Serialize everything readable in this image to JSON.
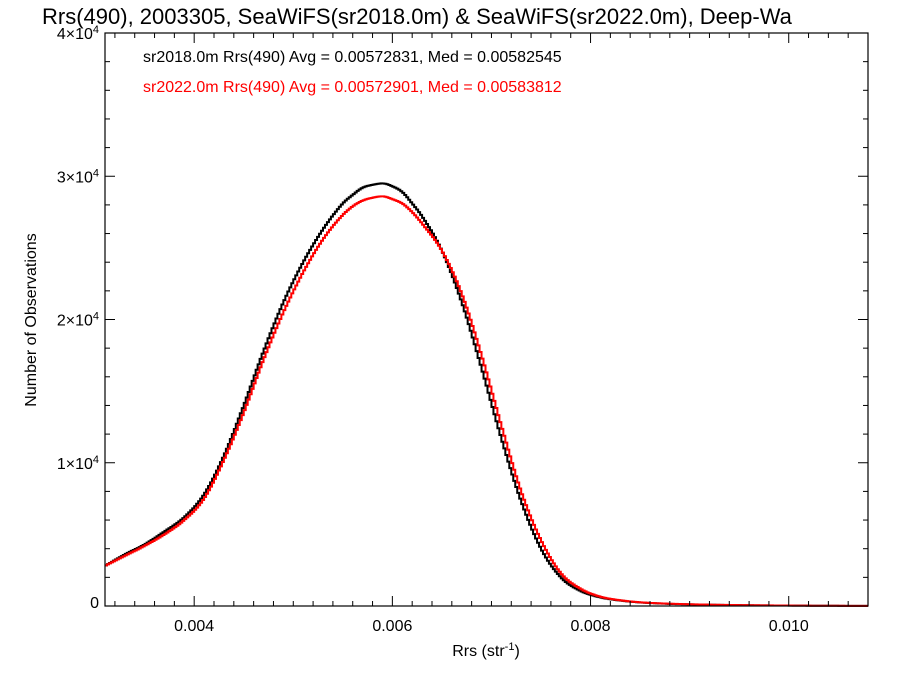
{
  "chart_data": {
    "type": "line",
    "step": true,
    "title": "Rrs(490), 2003305, SeaWiFS(sr2018.0m) & SeaWiFS(sr2022.0m), Deep-Wa",
    "xlabel": "Rrs (str",
    "xlabel_sup": "-1",
    "xlabel_suffix": ")",
    "ylabel": "Number of Observations",
    "xlim": [
      0.0031,
      0.0108
    ],
    "ylim": [
      0,
      40000
    ],
    "x_ticks": [
      {
        "value": 0.004,
        "label": "0.004"
      },
      {
        "value": 0.006,
        "label": "0.006"
      },
      {
        "value": 0.008,
        "label": "0.008"
      },
      {
        "value": 0.01,
        "label": "0.010"
      }
    ],
    "y_ticks": [
      {
        "value": 0,
        "label": "0",
        "sup": ""
      },
      {
        "value": 10000,
        "label": "1×10",
        "sup": "4"
      },
      {
        "value": 20000,
        "label": "2×10",
        "sup": "4"
      },
      {
        "value": 30000,
        "label": "3×10",
        "sup": "4"
      },
      {
        "value": 40000,
        "label": "4×10",
        "sup": "4"
      }
    ],
    "annotations": [
      {
        "text": "sr2018.0m Rrs(490) Avg = 0.00572831, Med = 0.00582545",
        "color": "#000000"
      },
      {
        "text": "sr2022.0m Rrs(490) Avg = 0.00572901, Med = 0.00583812",
        "color": "#ff0000"
      }
    ],
    "grid": false,
    "series": [
      {
        "color": "#000000",
        "x": [
          0.0031,
          0.0033,
          0.0035,
          0.0037,
          0.0039,
          0.0041,
          0.0043,
          0.0045,
          0.0047,
          0.0049,
          0.0051,
          0.0053,
          0.0055,
          0.0056,
          0.0057,
          0.0058,
          0.0059,
          0.006,
          0.0061,
          0.0062,
          0.0063,
          0.0065,
          0.0067,
          0.0069,
          0.0071,
          0.0073,
          0.0075,
          0.0077,
          0.0079,
          0.0081,
          0.0083,
          0.0085,
          0.0088,
          0.0092,
          0.0096,
          0.01,
          0.0104,
          0.0108
        ],
        "y": [
          2800,
          3600,
          4300,
          5200,
          6200,
          7800,
          10500,
          14000,
          17800,
          21200,
          24000,
          26300,
          28100,
          28700,
          29200,
          29400,
          29500,
          29300,
          28900,
          28100,
          27200,
          24800,
          21200,
          16600,
          11700,
          7300,
          4000,
          2000,
          1050,
          600,
          380,
          250,
          150,
          90,
          50,
          30,
          15,
          10
        ]
      },
      {
        "color": "#ff0000",
        "x": [
          0.0031,
          0.0033,
          0.0035,
          0.0037,
          0.0039,
          0.0041,
          0.0043,
          0.0045,
          0.0047,
          0.0049,
          0.0051,
          0.0053,
          0.0055,
          0.0056,
          0.0057,
          0.0058,
          0.0059,
          0.006,
          0.0061,
          0.0062,
          0.0063,
          0.0065,
          0.0067,
          0.0069,
          0.0071,
          0.0073,
          0.0075,
          0.0077,
          0.0079,
          0.0081,
          0.0083,
          0.0085,
          0.0088,
          0.0092,
          0.0096,
          0.01,
          0.0104,
          0.0108
        ],
        "y": [
          2800,
          3500,
          4200,
          5000,
          6000,
          7500,
          10200,
          13500,
          17200,
          20500,
          23300,
          25600,
          27300,
          27900,
          28300,
          28500,
          28600,
          28400,
          28100,
          27500,
          26700,
          24800,
          21800,
          17500,
          12600,
          8000,
          4600,
          2300,
          1200,
          650,
          400,
          260,
          160,
          95,
          55,
          32,
          16,
          10
        ]
      }
    ]
  }
}
